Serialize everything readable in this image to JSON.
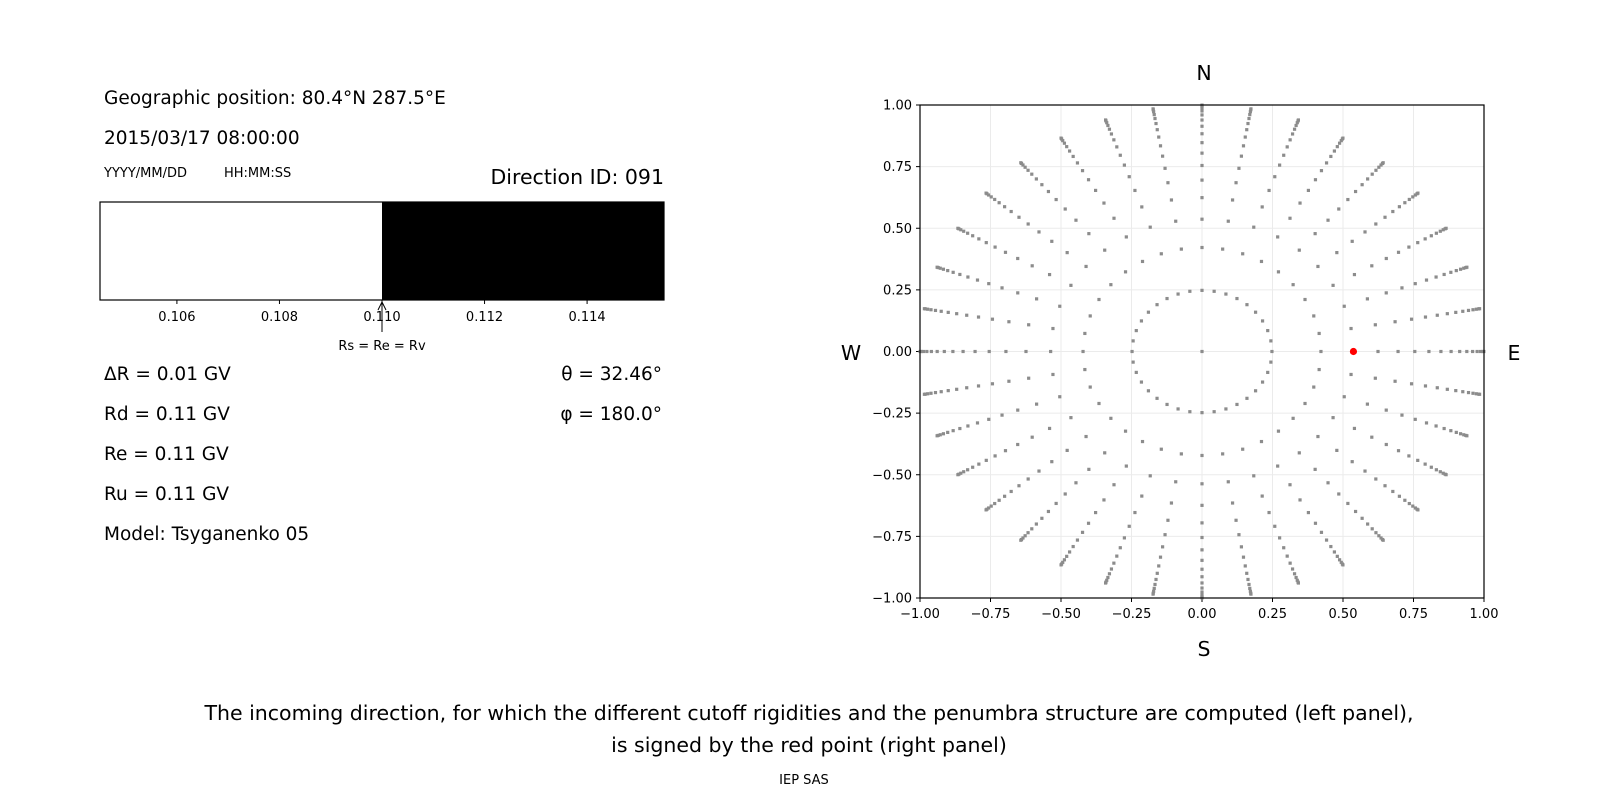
{
  "left_panel": {
    "geo_position": "Geographic position: 80.4°N 287.5°E",
    "datetime": "2015/03/17 08:00:00",
    "date_format": "YYYY/MM/DD",
    "time_format": "HH:MM:SS",
    "direction_id": "Direction ID: 091",
    "delta_r": "ΔR = 0.01 GV",
    "rd": "Rd = 0.11 GV",
    "re": "Re = 0.11 GV",
    "ru": "Ru = 0.11 GV",
    "model": "Model: Tsyganenko 05",
    "theta": "θ = 32.46°",
    "phi": "φ = 180.0°"
  },
  "right_panel": {
    "north": "N",
    "south": "S",
    "west": "W",
    "east": "E"
  },
  "caption": {
    "line1": "The incoming direction, for which the different cutoff rigidities and the penumbra structure are computed (left panel),",
    "line2": "is signed by the red point (right panel)",
    "credit": "IEP SAS"
  },
  "chart_data": [
    {
      "type": "bar",
      "description_kind": "penumbra",
      "xlim": [
        0.1045,
        0.1155
      ],
      "xticks": [
        "0.106",
        "0.108",
        "0.110",
        "0.112",
        "0.114"
      ],
      "xtick_values": [
        0.106,
        0.108,
        0.11,
        0.112,
        0.114
      ],
      "segments": [
        {
          "from": 0.1045,
          "to": 0.11,
          "color": "#ffffff"
        },
        {
          "from": 0.11,
          "to": 0.1155,
          "color": "#000000"
        }
      ],
      "annotation": {
        "text": "Rs = Re = Rv",
        "x": 0.11
      },
      "grid": false
    },
    {
      "type": "scatter",
      "xlim": [
        -1.0,
        1.0
      ],
      "ylim": [
        -1.0,
        1.0
      ],
      "xticks": [
        "−1.00",
        "−0.75",
        "−0.50",
        "−0.25",
        "0.00",
        "0.25",
        "0.50",
        "0.75",
        "1.00"
      ],
      "yticks": [
        "−1.00",
        "−0.75",
        "−0.50",
        "−0.25",
        "0.00",
        "0.25",
        "0.50",
        "0.75",
        "1.00"
      ],
      "tick_values": [
        -1,
        -0.75,
        -0.5,
        -0.25,
        0,
        0.25,
        0.5,
        0.75,
        1
      ],
      "grid": true,
      "direction_grid": {
        "center_point": [
          0,
          0
        ],
        "theta_deg": [
          14.36,
          24.95,
          32.46,
          38.62,
          44.05,
          48.99,
          53.58,
          57.91,
          62.05,
          66.03,
          69.89,
          73.67,
          77.36,
          81.01,
          84.62,
          88.21
        ],
        "phi_deg": [
          0,
          10,
          20,
          30,
          40,
          50,
          60,
          70,
          80,
          90,
          100,
          110,
          120,
          130,
          140,
          150,
          160,
          170,
          180,
          190,
          200,
          210,
          220,
          230,
          240,
          250,
          260,
          270,
          280,
          290,
          300,
          310,
          320,
          330,
          340,
          350
        ],
        "projection": "x = -sin(theta)cos(phi), y = sin(theta)sin(phi)",
        "color": "#8c8c8c"
      },
      "highlight": {
        "theta_deg": 32.46,
        "phi_deg": 180.0,
        "x": 0.537,
        "y": 0.0,
        "color": "#ff0000"
      }
    }
  ]
}
